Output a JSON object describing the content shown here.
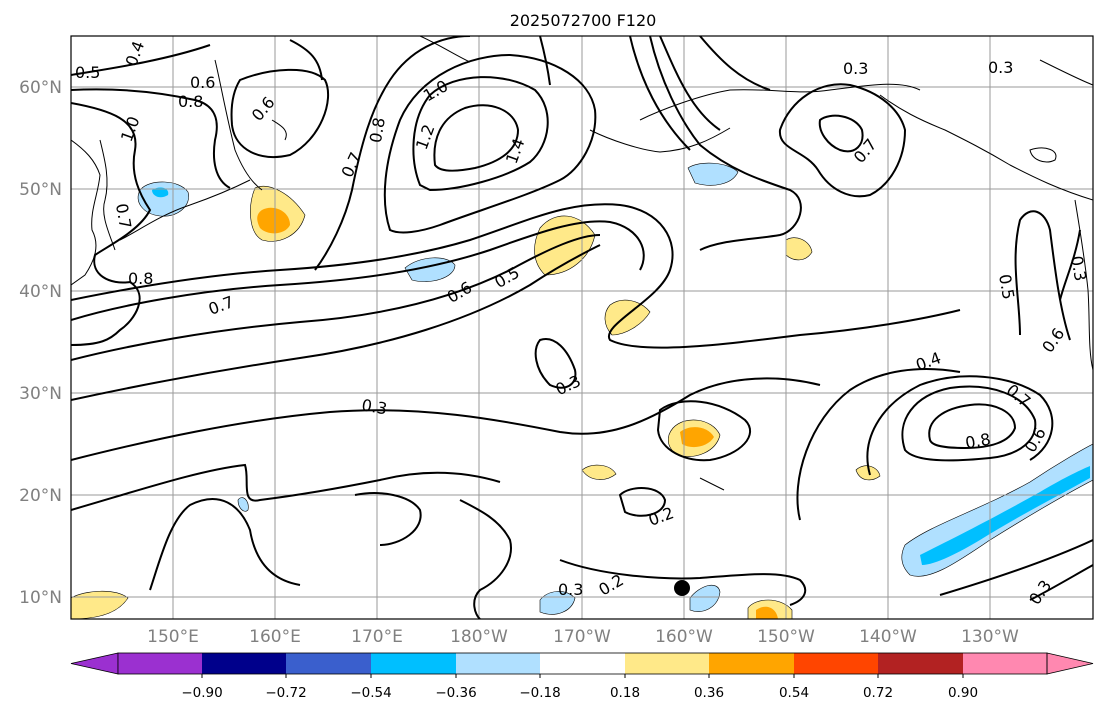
{
  "title": "2025072700 F120",
  "lat_labels": [
    "60°N",
    "50°N",
    "40°N",
    "30°N",
    "20°N",
    "10°N"
  ],
  "lon_labels": [
    "150°E",
    "160°E",
    "170°E",
    "180°W",
    "170°W",
    "160°W",
    "150°W",
    "140°W",
    "130°W"
  ],
  "colorbar": {
    "tick_labels": [
      "−0.90",
      "−0.72",
      "−0.54",
      "−0.36",
      "−0.18",
      "0.18",
      "0.36",
      "0.54",
      "0.72",
      "0.90"
    ],
    "colors": [
      "#9b30d0",
      "#00008b",
      "#3a5fcd",
      "#00bfff",
      "#b0e0ff",
      "#ffffff",
      "#ffe989",
      "#ffa500",
      "#ff4500",
      "#b22222",
      "#ff88b0",
      "#ff88b0"
    ]
  },
  "contour_labels": [
    "0.5",
    "0.4",
    "0.6",
    "0.8",
    "1.0",
    "0.6",
    "0.7",
    "0.8",
    "1.0",
    "1.2",
    "1.4",
    "0.3",
    "0.3",
    "0.7",
    "0.7",
    "0.8",
    "0.7",
    "0.6",
    "0.5",
    "0.3",
    "0.3",
    "0.2",
    "0.2",
    "0.3",
    "0.4",
    "0.7",
    "0.6",
    "0.8",
    "0.5",
    "0.6",
    "0.3",
    "0.3"
  ],
  "marker": "black-dot"
}
